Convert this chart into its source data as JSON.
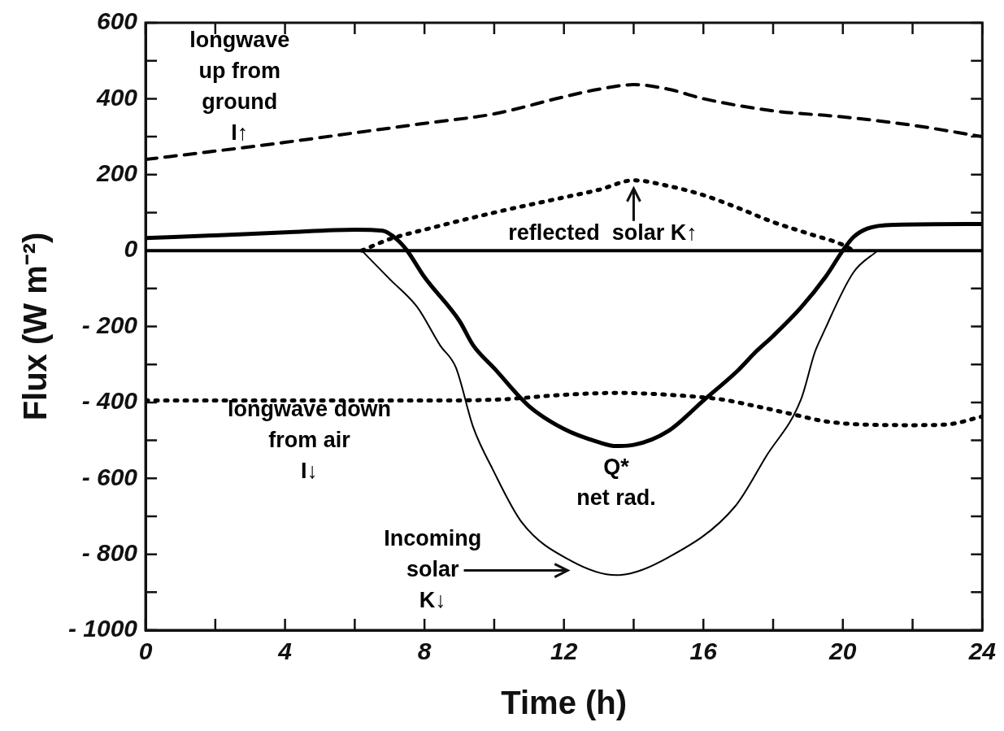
{
  "chart_data": {
    "type": "line",
    "xlabel": "Time (h)",
    "ylabel": "Flux (W m⁻²)",
    "xlim": [
      0,
      24
    ],
    "ylim": [
      -1000,
      600
    ],
    "xticks": [
      0,
      {
        "value": 2,
        "label": null
      },
      4,
      {
        "value": 6,
        "label": null
      },
      8,
      {
        "value": 10,
        "label": null
      },
      12,
      {
        "value": 14,
        "label": null
      },
      16,
      {
        "value": 18,
        "label": null
      },
      20,
      {
        "value": 22,
        "label": null
      },
      24
    ],
    "yticks": [
      {
        "value": -1000,
        "label": "- 1000"
      },
      {
        "value": -900,
        "label": null
      },
      {
        "value": -800,
        "label": "- 800"
      },
      {
        "value": -700,
        "label": null
      },
      {
        "value": -600,
        "label": "- 600"
      },
      {
        "value": -500,
        "label": null
      },
      {
        "value": -400,
        "label": "- 400"
      },
      {
        "value": -300,
        "label": null
      },
      {
        "value": -200,
        "label": "- 200"
      },
      {
        "value": -100,
        "label": null
      },
      0,
      {
        "value": 100,
        "label": null
      },
      200,
      {
        "value": 300,
        "label": null
      },
      400,
      {
        "value": 500,
        "label": null
      },
      600
    ],
    "grid": false,
    "legend": false,
    "marker": "none",
    "ref_lines": [
      {
        "axis": "y",
        "value": 0,
        "color": "#000000",
        "line_style": "solid"
      }
    ],
    "series": [
      {
        "name": "longwave\nup from\nground\nI↑",
        "color": "#000000",
        "line_style": "dashed",
        "x": [
          0,
          2,
          4,
          6,
          8,
          10,
          12,
          13,
          14,
          15,
          16,
          18,
          20,
          22,
          24
        ],
        "values": [
          240,
          262,
          285,
          310,
          335,
          360,
          405,
          425,
          437,
          425,
          400,
          368,
          352,
          330,
          300
        ]
      },
      {
        "name": "reflected  solar K↑",
        "color": "#000000",
        "line_style": "dotted",
        "x": [
          6.2,
          7,
          8,
          10,
          12,
          13,
          14,
          15,
          16,
          17,
          18,
          19,
          20,
          20.3
        ],
        "values": [
          0,
          30,
          55,
          100,
          140,
          160,
          185,
          170,
          146,
          112,
          75,
          45,
          15,
          0
        ]
      },
      {
        "name": "Q*\nnet rad.",
        "color": "#000000",
        "line_style": "solid",
        "x": [
          0,
          2,
          4,
          6,
          6.8,
          7.2,
          7.5,
          8,
          9,
          9.4,
          10,
          11,
          12,
          13,
          13.5,
          14,
          15,
          16,
          17,
          17.5,
          18,
          18.8,
          19.5,
          20,
          20.3,
          20.7,
          21.5,
          24
        ],
        "values": [
          33,
          40,
          48,
          55,
          52,
          30,
          0,
          -70,
          -185,
          -250,
          -310,
          -410,
          -470,
          -505,
          -515,
          -512,
          -475,
          -395,
          -315,
          -267,
          -225,
          -150,
          -70,
          0,
          35,
          58,
          68,
          70
        ]
      },
      {
        "name": "longwave down\nfrom air\nI↓",
        "color": "#000000",
        "line_style": "dotted",
        "x": [
          0,
          4,
          8,
          10,
          12,
          13.5,
          15,
          16.5,
          17.5,
          18.5,
          19.5,
          20.5,
          22,
          23,
          24
        ],
        "values": [
          -395,
          -395,
          -395,
          -393,
          -380,
          -375,
          -380,
          -392,
          -410,
          -430,
          -450,
          -458,
          -460,
          -458,
          -437
        ]
      },
      {
        "name": "Incoming\nsolar\nK↓",
        "color": "#000000",
        "line_style": "solid",
        "x": [
          6.2,
          7,
          7.8,
          8.45,
          8.9,
          9.4,
          9.95,
          10.8,
          12.2,
          13.5,
          15,
          16.9,
          17.8,
          18.8,
          19.2,
          19.4,
          20.3,
          21
        ],
        "values": [
          0,
          -75,
          -150,
          -250,
          -308,
          -466,
          -575,
          -717,
          -817,
          -855,
          -808,
          -675,
          -542,
          -392,
          -267,
          -225,
          -58,
          0
        ]
      }
    ]
  }
}
